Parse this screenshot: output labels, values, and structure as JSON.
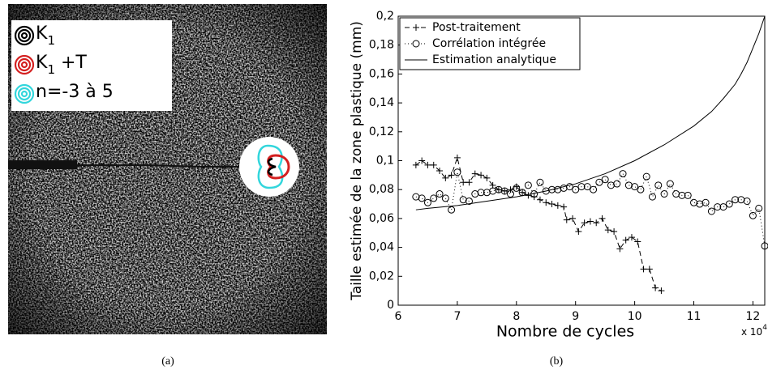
{
  "figure_a": {
    "legend": [
      {
        "main": "K",
        "sub": "1",
        "suffix": "",
        "color": "#000000"
      },
      {
        "main": "K",
        "sub": "1",
        "suffix": " +T",
        "color": "#d42020"
      },
      {
        "main": "n=-3 à 5",
        "color": "#33d6dc"
      }
    ],
    "caption": "(a)"
  },
  "chart_data": {
    "type": "line",
    "caption": "(b)",
    "x_label": "Nombre de cycles",
    "y_label": "Taille estimée de la zone plastique (mm)",
    "x_multiplier": {
      "base": "x 10",
      "exponent": "4"
    },
    "xlim": [
      6,
      12.2
    ],
    "xticks": [
      6,
      7,
      8,
      9,
      10,
      11,
      12
    ],
    "ylim": [
      0,
      0.2
    ],
    "yticks": [
      0,
      {
        "value": 0.02,
        "label": "0,02"
      },
      {
        "value": 0.04,
        "label": "0,04"
      },
      {
        "value": 0.06,
        "label": "0,06"
      },
      {
        "value": 0.08,
        "label": "0,08"
      },
      {
        "value": 0.1,
        "label": "0,1"
      },
      {
        "value": 0.12,
        "label": "0,12"
      },
      {
        "value": 0.14,
        "label": "0,14"
      },
      {
        "value": 0.16,
        "label": "0,16"
      },
      {
        "value": 0.18,
        "label": "0,18"
      },
      {
        "value": 0.2,
        "label": "0,2"
      }
    ],
    "legend_position": "upper left",
    "series": [
      {
        "name": "Post-traitement",
        "color": "#000000",
        "dash": "6,4",
        "marker": "plus",
        "x": [
          6.3,
          6.4,
          6.5,
          6.6,
          6.7,
          6.8,
          6.9,
          7.0,
          7.1,
          7.2,
          7.3,
          7.4,
          7.5,
          7.6,
          7.7,
          7.8,
          7.9,
          8.0,
          8.1,
          8.2,
          8.3,
          8.4,
          8.5,
          8.6,
          8.7,
          8.8,
          8.85,
          8.95,
          9.05,
          9.15,
          9.25,
          9.35,
          9.45,
          9.55,
          9.65,
          9.75,
          9.85,
          9.95,
          10.05,
          10.15,
          10.25,
          10.35,
          10.45
        ],
        "values": [
          0.097,
          0.1,
          0.097,
          0.097,
          0.093,
          0.088,
          0.09,
          0.102,
          0.085,
          0.085,
          0.091,
          0.09,
          0.088,
          0.083,
          0.08,
          0.079,
          0.08,
          0.082,
          0.078,
          0.076,
          0.075,
          0.073,
          0.071,
          0.07,
          0.069,
          0.068,
          0.059,
          0.06,
          0.051,
          0.057,
          0.058,
          0.057,
          0.06,
          0.052,
          0.051,
          0.039,
          0.045,
          0.047,
          0.044,
          0.025,
          0.025,
          0.012,
          0.01
        ]
      },
      {
        "name": "Corrélation intégrée",
        "color": "#000000",
        "dash": "1,3",
        "marker": "circle",
        "x": [
          6.3,
          6.4,
          6.5,
          6.6,
          6.7,
          6.8,
          6.9,
          7.0,
          7.1,
          7.2,
          7.3,
          7.4,
          7.5,
          7.6,
          7.7,
          7.8,
          7.9,
          8.0,
          8.1,
          8.2,
          8.3,
          8.4,
          8.5,
          8.6,
          8.7,
          8.8,
          8.9,
          9.0,
          9.1,
          9.2,
          9.3,
          9.4,
          9.5,
          9.6,
          9.7,
          9.8,
          9.9,
          10.0,
          10.1,
          10.2,
          10.3,
          10.4,
          10.5,
          10.6,
          10.7,
          10.8,
          10.9,
          11.0,
          11.1,
          11.2,
          11.3,
          11.4,
          11.5,
          11.6,
          11.7,
          11.8,
          11.9,
          12.0,
          12.1,
          12.2
        ],
        "values": [
          0.075,
          0.074,
          0.071,
          0.074,
          0.077,
          0.074,
          0.066,
          0.092,
          0.073,
          0.072,
          0.077,
          0.078,
          0.078,
          0.079,
          0.08,
          0.079,
          0.077,
          0.081,
          0.078,
          0.083,
          0.077,
          0.085,
          0.079,
          0.08,
          0.08,
          0.081,
          0.082,
          0.08,
          0.082,
          0.082,
          0.08,
          0.085,
          0.087,
          0.083,
          0.084,
          0.091,
          0.083,
          0.082,
          0.08,
          0.089,
          0.075,
          0.083,
          0.077,
          0.084,
          0.077,
          0.076,
          0.076,
          0.071,
          0.07,
          0.071,
          0.065,
          0.068,
          0.068,
          0.07,
          0.073,
          0.073,
          0.072,
          0.062,
          0.067,
          0.041
        ]
      },
      {
        "name": "Estimation analytique",
        "color": "#000000",
        "dash": "none",
        "marker": "none",
        "x": [
          6.3,
          6.5,
          7.0,
          7.5,
          8.0,
          8.5,
          9.0,
          9.5,
          10.0,
          10.5,
          11.0,
          11.3,
          11.5,
          11.7,
          11.8,
          11.9,
          12.0,
          12.1,
          12.2
        ],
        "values": [
          0.066,
          0.067,
          0.069,
          0.072,
          0.075,
          0.079,
          0.084,
          0.091,
          0.1,
          0.111,
          0.124,
          0.134,
          0.143,
          0.153,
          0.16,
          0.168,
          0.178,
          0.188,
          0.2
        ]
      }
    ]
  }
}
